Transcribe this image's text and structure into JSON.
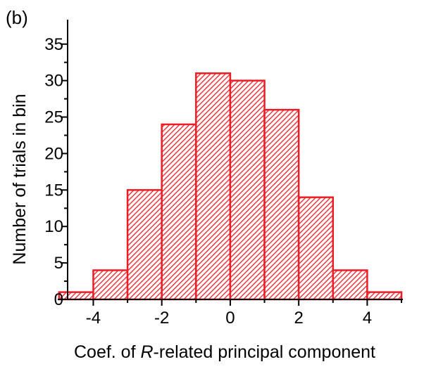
{
  "panel_label": "(b)",
  "chart_data": {
    "type": "bar",
    "subtype": "histogram",
    "bin_edges": [
      -5,
      -4,
      -3,
      -2,
      -1,
      0,
      1,
      2,
      3,
      4,
      5
    ],
    "values": [
      1,
      4,
      15,
      24,
      31,
      30,
      26,
      14,
      4,
      1
    ],
    "xlabel_prefix": "Coef. of ",
    "xlabel_italic": "R",
    "xlabel_suffix": "-related principal component",
    "ylabel": "Number of trials in bin",
    "xlim": [
      -4.75,
      5
    ],
    "ylim": [
      0,
      37
    ],
    "xticks": [
      -4,
      -2,
      0,
      2,
      4
    ],
    "yticks": [
      0,
      5,
      10,
      15,
      20,
      25,
      30,
      35
    ],
    "bar_color": "#ee1c24",
    "bar_fill": "diagonal-hatch",
    "grid": false
  }
}
